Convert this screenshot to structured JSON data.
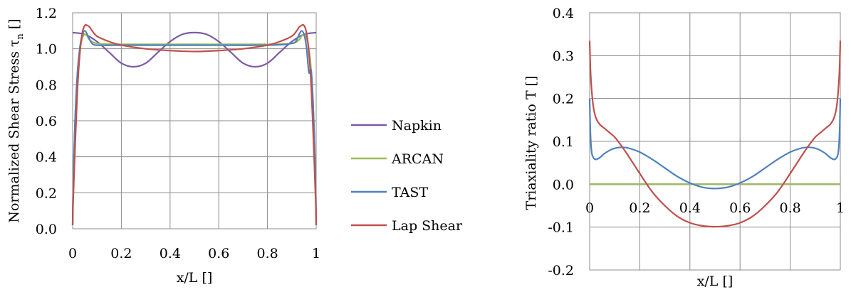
{
  "chart_data": [
    {
      "type": "line",
      "xlabel": "x/L []",
      "ylabel": "Normalized  Shear Stress τ",
      "ylabel_sub": "n",
      "ylabel_unit": " []",
      "xlim": [
        0,
        1
      ],
      "ylim": [
        0,
        1.2
      ],
      "xticks": [
        "0",
        "0.2",
        "0.4",
        "0.6",
        "0.8",
        "1"
      ],
      "yticks": [
        "0.0",
        "0.2",
        "0.4",
        "0.6",
        "0.8",
        "1.0",
        "1.2"
      ],
      "grid": true,
      "legend": "right",
      "series": [
        {
          "name": "Napkin",
          "color": "#7D5BA6",
          "x": [
            0,
            0.05,
            0.1,
            0.15,
            0.2,
            0.25,
            0.3,
            0.35,
            0.4,
            0.45,
            0.5,
            0.55,
            0.6,
            0.65,
            0.7,
            0.75,
            0.8,
            0.85,
            0.9,
            0.95,
            1
          ],
          "y": [
            1.09,
            1.08,
            1.04,
            0.98,
            0.92,
            0.9,
            0.92,
            0.98,
            1.04,
            1.08,
            1.09,
            1.08,
            1.04,
            0.98,
            0.92,
            0.9,
            0.92,
            0.98,
            1.04,
            1.08,
            1.09
          ]
        },
        {
          "name": "ARCAN",
          "color": "#9BBB59",
          "x": [
            0,
            0.002,
            0.01,
            0.02,
            0.03,
            0.04,
            0.05,
            0.06,
            0.07,
            0.1,
            0.2,
            0.5,
            0.8,
            0.9,
            0.93,
            0.94,
            0.95,
            0.96,
            0.97,
            0.98,
            0.99,
            0.998,
            1
          ],
          "y": [
            0.02,
            0.2,
            0.6,
            0.87,
            1.0,
            1.06,
            1.08,
            1.07,
            1.05,
            1.03,
            1.025,
            1.025,
            1.025,
            1.03,
            1.05,
            1.07,
            1.08,
            1.06,
            1.0,
            0.87,
            0.6,
            0.2,
            0.02
          ]
        },
        {
          "name": "TAST",
          "color": "#4F81BD",
          "x": [
            0,
            0.002,
            0.01,
            0.02,
            0.03,
            0.04,
            0.05,
            0.06,
            0.07,
            0.08,
            0.1,
            0.2,
            0.5,
            0.8,
            0.9,
            0.92,
            0.93,
            0.94,
            0.95,
            0.96,
            0.97,
            0.98,
            0.99,
            0.998,
            1
          ],
          "y": [
            0.02,
            0.2,
            0.6,
            0.87,
            1.01,
            1.08,
            1.1,
            1.08,
            1.05,
            1.03,
            1.02,
            1.02,
            1.02,
            1.02,
            1.03,
            1.05,
            1.08,
            1.1,
            1.08,
            1.01,
            0.87,
            0.87,
            0.6,
            0.2,
            0.02
          ]
        },
        {
          "name": "Lap Shear",
          "color": "#C0504D",
          "x": [
            0,
            0.002,
            0.01,
            0.02,
            0.03,
            0.04,
            0.05,
            0.06,
            0.07,
            0.08,
            0.1,
            0.15,
            0.2,
            0.3,
            0.4,
            0.5,
            0.6,
            0.7,
            0.8,
            0.85,
            0.9,
            0.92,
            0.93,
            0.94,
            0.95,
            0.96,
            0.97,
            0.98,
            0.99,
            0.998,
            1
          ],
          "y": [
            0.02,
            0.15,
            0.45,
            0.78,
            0.98,
            1.09,
            1.13,
            1.13,
            1.12,
            1.1,
            1.07,
            1.04,
            1.02,
            1.0,
            0.99,
            0.985,
            0.99,
            1.0,
            1.02,
            1.04,
            1.07,
            1.1,
            1.12,
            1.13,
            1.13,
            1.09,
            0.98,
            0.78,
            0.45,
            0.15,
            0.02
          ]
        }
      ]
    },
    {
      "type": "line",
      "xlabel": "x/L []",
      "ylabel": "Triaxiality ratio T []",
      "xlim": [
        0,
        1
      ],
      "ylim": [
        -0.2,
        0.4
      ],
      "xticks": [
        "0",
        "0.2",
        "0.4",
        "0.6",
        "0.8",
        "1"
      ],
      "yticks": [
        "-0.2",
        "-0.1",
        "0.0",
        "0.1",
        "0.2",
        "0.3",
        "0.4"
      ],
      "grid": true,
      "series": [
        {
          "name": "Napkin",
          "color": "#7D5BA6",
          "x": [
            0,
            1
          ],
          "y": [
            0,
            0
          ]
        },
        {
          "name": "ARCAN",
          "color": "#9BBB59",
          "x": [
            0,
            1
          ],
          "y": [
            0,
            0
          ]
        },
        {
          "name": "TAST",
          "color": "#4F81BD",
          "x": [
            0,
            0.003,
            0.008,
            0.015,
            0.025,
            0.04,
            0.06,
            0.09,
            0.12,
            0.15,
            0.2,
            0.25,
            0.3,
            0.35,
            0.4,
            0.45,
            0.5,
            0.55,
            0.6,
            0.65,
            0.7,
            0.75,
            0.8,
            0.85,
            0.88,
            0.91,
            0.94,
            0.96,
            0.975,
            0.985,
            0.992,
            0.997,
            1
          ],
          "y": [
            0.2,
            0.12,
            0.075,
            0.062,
            0.058,
            0.062,
            0.072,
            0.082,
            0.086,
            0.085,
            0.075,
            0.058,
            0.038,
            0.018,
            0.003,
            -0.007,
            -0.01,
            -0.007,
            0.003,
            0.018,
            0.038,
            0.058,
            0.075,
            0.085,
            0.086,
            0.082,
            0.072,
            0.062,
            0.058,
            0.062,
            0.075,
            0.12,
            0.2
          ]
        },
        {
          "name": "Lap Shear",
          "color": "#C0504D",
          "x": [
            0,
            0.003,
            0.008,
            0.015,
            0.025,
            0.04,
            0.06,
            0.08,
            0.1,
            0.12,
            0.15,
            0.2,
            0.25,
            0.3,
            0.35,
            0.4,
            0.45,
            0.5,
            0.55,
            0.6,
            0.65,
            0.7,
            0.75,
            0.8,
            0.85,
            0.88,
            0.9,
            0.92,
            0.94,
            0.96,
            0.975,
            0.985,
            0.992,
            0.997,
            1
          ],
          "y": [
            0.335,
            0.27,
            0.22,
            0.18,
            0.155,
            0.14,
            0.13,
            0.12,
            0.11,
            0.095,
            0.07,
            0.025,
            -0.018,
            -0.05,
            -0.075,
            -0.09,
            -0.097,
            -0.099,
            -0.097,
            -0.09,
            -0.075,
            -0.05,
            -0.018,
            0.025,
            0.07,
            0.095,
            0.11,
            0.12,
            0.13,
            0.14,
            0.155,
            0.18,
            0.22,
            0.27,
            0.335
          ]
        }
      ]
    }
  ]
}
